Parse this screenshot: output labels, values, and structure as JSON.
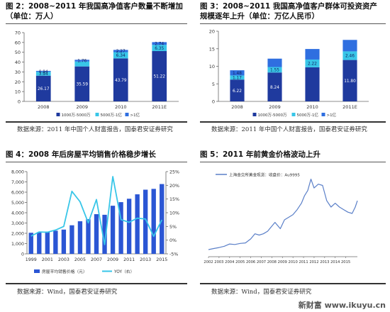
{
  "figures": {
    "fig2": {
      "title_line1": "图 2：2008~2011 年我国高净值客户数量不断增加",
      "title_line2": "（单位：万人）",
      "source": "数据来源：2011 年中国个人财富报告，国泰君安证券研究"
    },
    "fig3": {
      "title_line1": "图 3：2008~2011 我国高净值客户群体可投资资产",
      "title_line2": "规模逐年上升（单位：万亿人民币）",
      "source": "数据来源：2011 年中国个人财富报告，国泰君安证券研究"
    },
    "fig4": {
      "title_line1": "图 4：2008 年后房屋平均销售价格稳步增长",
      "source": "数据来源：Wind，国泰君安证券研究"
    },
    "fig5": {
      "title_line1": "图 5：2011 年前黄金价格波动上升",
      "source": "数据来源：Wind，国泰君安证券研究"
    }
  },
  "watermark": "新财富 www.ikuyu.cn",
  "colors": {
    "bar_dark": "#1f3a9e",
    "bar_mid": "#2f6fe0",
    "bar_light": "#38c6e8",
    "bar_house": "#2b56d4",
    "line_yoy": "#38c6e8",
    "line_gold": "#5a7fc8"
  },
  "chart_data": [
    {
      "id": "fig2",
      "type": "bar",
      "stacked": true,
      "categories": [
        "2008",
        "2009",
        "2010",
        "2011E"
      ],
      "series": [
        {
          "name": "1000万-5000万",
          "color": "#1f3a9e",
          "values": [
            26.17,
            35.59,
            43.79,
            51.22
          ],
          "labels": [
            "26.17",
            "35.59",
            "43.79",
            "51.22"
          ]
        },
        {
          "name": "5000万-1亿",
          "color": "#38c6e8",
          "values": [
            3.94,
            5.01,
            6.34,
            6.35
          ],
          "labels": [
            "3.94",
            "",
            "6.34",
            "6.35"
          ]
        },
        {
          "name": ">1亿",
          "color": "#2f6fe0",
          "values": [
            0.94,
            1.76,
            2.27,
            2.74
          ],
          "labels": [
            "0.94",
            "1.76",
            "2.27",
            "2.74"
          ]
        }
      ],
      "ylim": [
        0,
        70
      ],
      "yticks": [
        "0",
        "10",
        "20",
        "30",
        "40",
        "50",
        "60",
        "70"
      ],
      "legend_position": "bottom"
    },
    {
      "id": "fig3",
      "type": "bar",
      "stacked": true,
      "categories": [
        "2008",
        "2009",
        "2010",
        "2011E"
      ],
      "series": [
        {
          "name": "1000万-5000万",
          "color": "#1f3a9e",
          "values": [
            6.22,
            8.24,
            9.71,
            11.8
          ],
          "labels": [
            "6.22",
            "8.24",
            "",
            "11.80"
          ]
        },
        {
          "name": "5000万-1亿",
          "color": "#38c6e8",
          "values": [
            1.17,
            1.55,
            2.22,
            2.46
          ],
          "labels": [
            "1.17",
            "1.55",
            "2.22",
            "2.46"
          ]
        },
        {
          "name": ">1亿",
          "color": "#2f6fe0",
          "values": [
            1.48,
            2.39,
            3.0,
            3.26
          ],
          "labels": [
            "1.48",
            "",
            "",
            ""
          ]
        }
      ],
      "ylim": [
        0,
        20
      ],
      "yticks": [
        "0",
        "5",
        "10",
        "15",
        "20"
      ],
      "legend_position": "bottom"
    },
    {
      "id": "fig4",
      "type": "bar",
      "x": [
        1999,
        2000,
        2001,
        2002,
        2003,
        2004,
        2005,
        2006,
        2007,
        2008,
        2009,
        2010,
        2011,
        2012,
        2013,
        2014,
        2015
      ],
      "xtick_labels": [
        "1999",
        "2001",
        "2003",
        "2005",
        "2007",
        "2009",
        "2011",
        "2013",
        "2015"
      ],
      "series": [
        {
          "name": "房屋平均销售价格（元）",
          "type": "bar",
          "axis": "left",
          "color": "#2b56d4",
          "values": [
            2050,
            2110,
            2170,
            2250,
            2360,
            2780,
            3170,
            3370,
            3860,
            3800,
            4680,
            5030,
            5360,
            5790,
            6240,
            6320,
            6790
          ]
        },
        {
          "name": "YOY（右）",
          "type": "line",
          "axis": "right",
          "color": "#38c6e8",
          "values": [
            1.5,
            3.0,
            2.9,
            3.7,
            5.0,
            17.8,
            14.0,
            6.3,
            14.8,
            -1.6,
            23.2,
            7.5,
            6.5,
            8.0,
            7.7,
            1.4,
            7.4
          ]
        }
      ],
      "ylim_left": [
        0,
        8000
      ],
      "yticks_left": [
        "0",
        "1,000",
        "2,000",
        "3,000",
        "4,000",
        "5,000",
        "6,000",
        "7,000",
        "8,000"
      ],
      "ylim_right": [
        -5,
        25
      ],
      "yticks_right": [
        "-5%",
        "0%",
        "5%",
        "10%",
        "15%",
        "20%",
        "25%"
      ],
      "legend_position": "bottom"
    },
    {
      "id": "fig5",
      "type": "line",
      "x": [
        2002.0,
        2002.5,
        2003.0,
        2003.5,
        2004.0,
        2004.5,
        2005.0,
        2005.5,
        2006.0,
        2006.4,
        2006.8,
        2007.2,
        2007.6,
        2008.0,
        2008.3,
        2008.8,
        2009.2,
        2009.6,
        2010.0,
        2010.4,
        2010.8,
        2011.1,
        2011.4,
        2011.7,
        2012.0,
        2012.4,
        2012.8,
        2013.2,
        2013.6,
        2014.0,
        2014.4,
        2014.8,
        2015.2,
        2015.6,
        2015.9,
        2016.1
      ],
      "xtick_labels": [
        "2002",
        "2003",
        "2004",
        "2005",
        "2006",
        "2007",
        "2008",
        "2009",
        "2010",
        "2011",
        "2012",
        "2013",
        "2014",
        "2015"
      ],
      "series": [
        {
          "name": "上海金交所黄金现货：收盘价：Au9995",
          "color": "#5a7fc8",
          "values": [
            88,
            92,
            96,
            101,
            110,
            108,
            112,
            114,
            130,
            150,
            145,
            150,
            160,
            180,
            195,
            170,
            205,
            215,
            225,
            245,
            270,
            300,
            320,
            365,
            330,
            345,
            340,
            280,
            255,
            270,
            255,
            245,
            235,
            230,
            255,
            280
          ]
        }
      ],
      "legend_position": "top-left"
    }
  ]
}
